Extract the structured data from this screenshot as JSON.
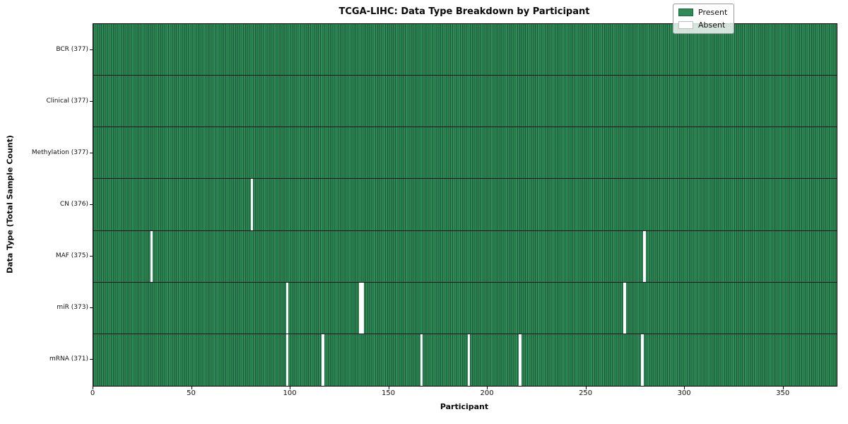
{
  "figure": {
    "title": "TCGA-LIHC: Data Type Breakdown by Participant",
    "xlabel": "Participant",
    "ylabel": "Data Type (Total Sample Count)"
  },
  "legend": {
    "items": [
      {
        "label": "Present",
        "color": "#2e8b57"
      },
      {
        "label": "Absent",
        "color": "#ffffff"
      }
    ]
  },
  "colors": {
    "present": "#2e8b57",
    "absent": "#ffffff",
    "cell_edge": "#1d5636",
    "row_separator": "#1a1a1a"
  },
  "chart_data": {
    "type": "heatmap",
    "title": "TCGA-LIHC: Data Type Breakdown by Participant",
    "xlabel": "Participant",
    "ylabel": "Data Type (Total Sample Count)",
    "xlim": [
      0,
      377
    ],
    "x_ticks": [
      0,
      50,
      100,
      150,
      200,
      250,
      300,
      350
    ],
    "n_participants": 377,
    "legend_entries": [
      "Present",
      "Absent"
    ],
    "value_legend": {
      "present": "Present",
      "absent": "Absent"
    },
    "rows": [
      {
        "data_type": "BCR",
        "label": "BCR (377)",
        "present_count": 377,
        "absent_participants": []
      },
      {
        "data_type": "Clinical",
        "label": "Clinical (377)",
        "present_count": 377,
        "absent_participants": []
      },
      {
        "data_type": "Methylation",
        "label": "Methylation (377)",
        "present_count": 377,
        "absent_participants": []
      },
      {
        "data_type": "CN",
        "label": "CN (376)",
        "present_count": 376,
        "absent_participants": [
          80
        ]
      },
      {
        "data_type": "MAF",
        "label": "MAF (375)",
        "present_count": 375,
        "absent_participants": [
          29,
          279
        ]
      },
      {
        "data_type": "miR",
        "label": "miR (373)",
        "present_count": 373,
        "absent_participants": [
          98,
          135,
          136,
          269
        ]
      },
      {
        "data_type": "mRNA",
        "label": "mRNA (371)",
        "present_count": 371,
        "absent_participants": [
          98,
          116,
          166,
          190,
          216,
          278
        ]
      }
    ]
  }
}
